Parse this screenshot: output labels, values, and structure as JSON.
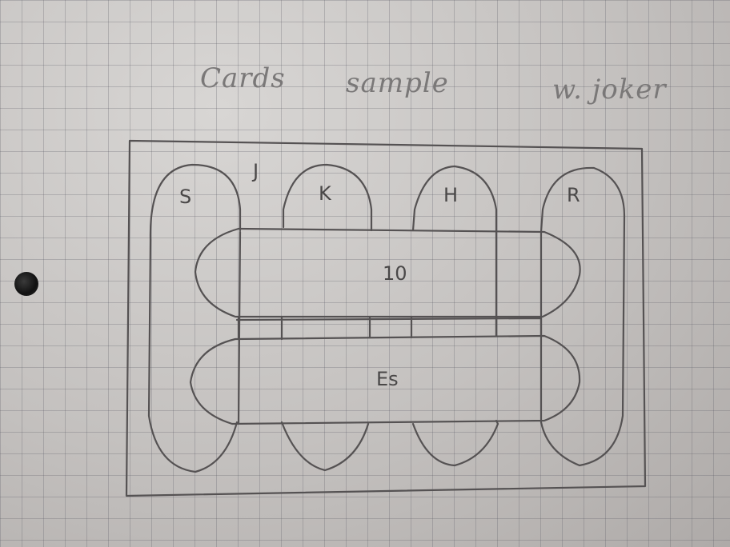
{
  "title": {
    "word1": "Cards",
    "word2": "sample",
    "word3": "w. joker"
  },
  "cards": {
    "corner_mark": "J",
    "top_labels": [
      "S",
      "K",
      "H",
      "R"
    ],
    "band_top": "10",
    "band_bottom": "Es"
  },
  "colors": {
    "paper": "#c9c6c4",
    "grid": "#5a5a64",
    "pencil": "#555253"
  }
}
